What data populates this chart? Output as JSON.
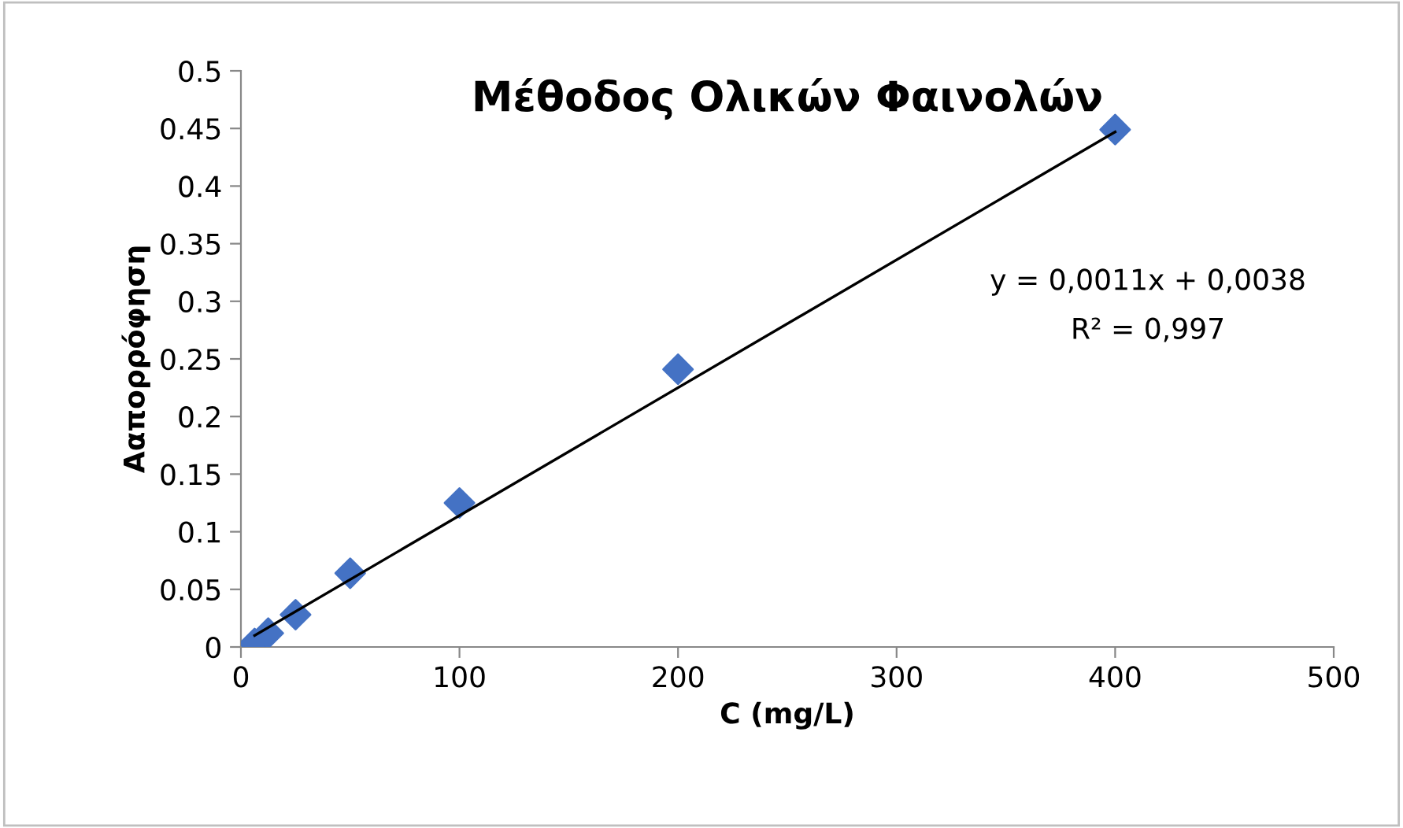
{
  "chart_data": {
    "type": "scatter",
    "title": "Μέθοδος Ολικών Φαινολών",
    "xlabel": "C (mg/L)",
    "ylabel": "Ααπορρόφηση",
    "x": [
      6.25,
      12.5,
      25,
      50,
      100,
      200,
      400
    ],
    "series": [
      {
        "color": "#4472c4",
        "marker": "diamond",
        "values": [
          0.003,
          0.012,
          0.028,
          0.064,
          0.125,
          0.241,
          0.449
        ]
      },
      {
        "type": "line",
        "color": "#000000",
        "marker": "none",
        "line_style": "solid",
        "x": [
          6.25,
          400
        ],
        "values": [
          0.01,
          0.447
        ]
      }
    ],
    "annotations": [
      "y = 0,0011x + 0,0038",
      "R² = 0,997"
    ],
    "xlim": [
      0,
      500
    ],
    "xticks": [
      0,
      100,
      200,
      300,
      400,
      500
    ],
    "ylim": [
      0,
      0.5
    ],
    "yticks": [
      0,
      0.05,
      0.1,
      0.15,
      0.2,
      0.25,
      0.3,
      0.35,
      0.4,
      0.45,
      0.5
    ],
    "grid": false,
    "legend": false
  }
}
